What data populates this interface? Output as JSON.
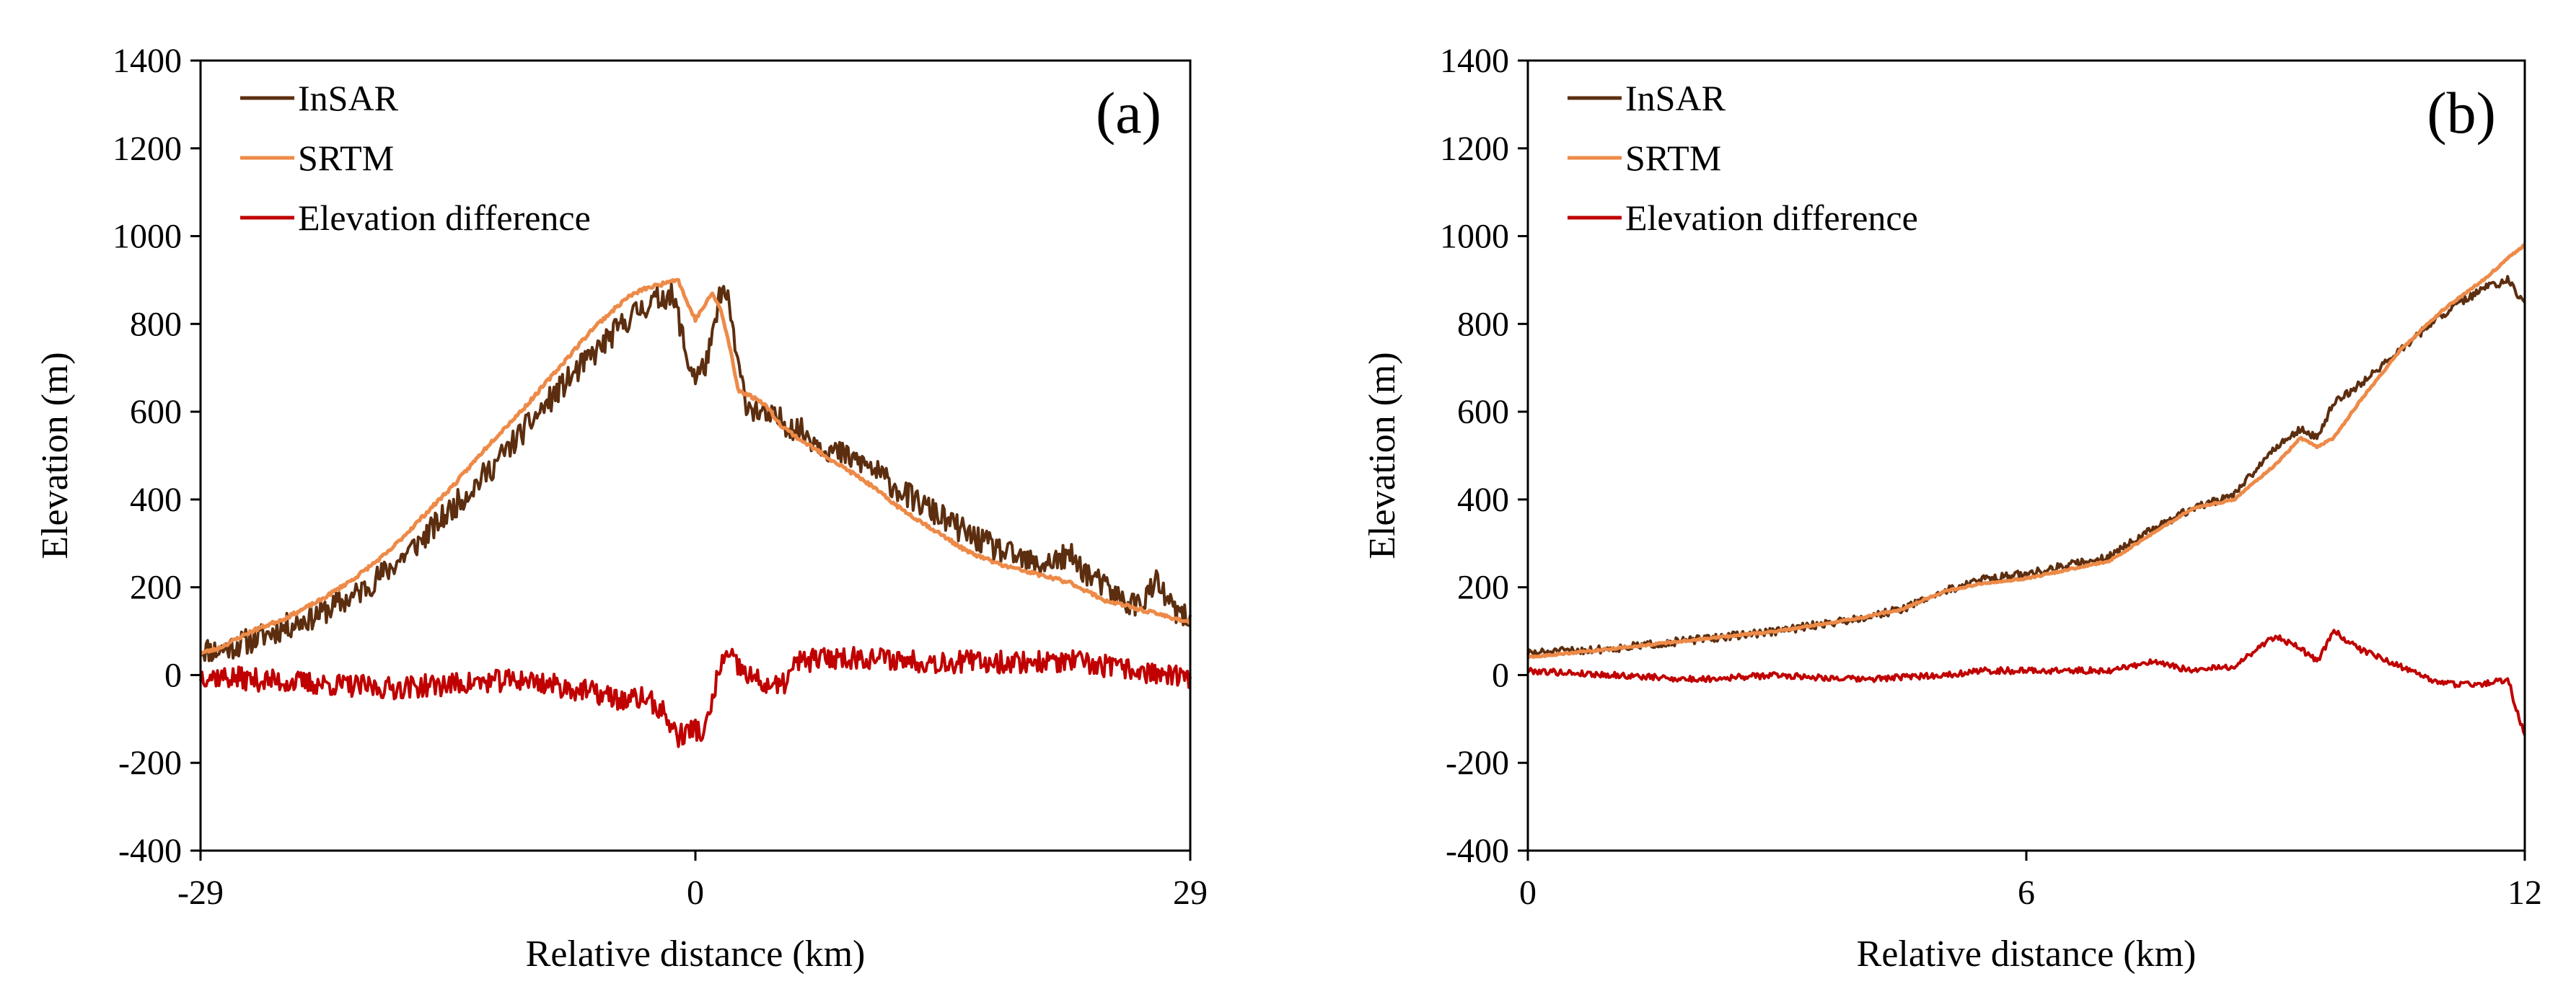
{
  "chart_data": [
    {
      "type": "line",
      "panel_label": "(a)",
      "xlabel": "Relative distance (km)",
      "ylabel": "Elevation (m)",
      "xlim": [
        -29,
        29
      ],
      "ylim": [
        -400,
        1400
      ],
      "xticks": [
        -29,
        0,
        29
      ],
      "xtick_labels": [
        "-29",
        "0",
        "29"
      ],
      "yticks": [
        1400,
        1200,
        1000,
        800,
        600,
        400,
        200,
        0,
        -200,
        -400
      ],
      "ytick_labels": [
        "1400",
        "1200",
        "1000",
        "800",
        "600",
        "400",
        "200",
        "0",
        "-200",
        "-400"
      ],
      "legend": [
        "InSAR",
        "SRTM",
        "Elevation difference"
      ],
      "series": [
        {
          "name": "InSAR",
          "color": "#5c2e0f",
          "noise": 30,
          "seed": 11,
          "x": [
            -29,
            -28,
            -26,
            -24,
            -22,
            -20,
            -18,
            -16,
            -14,
            -12,
            -10,
            -8,
            -6,
            -4,
            -3,
            -2,
            -1.5,
            -1,
            -0.5,
            0,
            0.5,
            1,
            1.5,
            2,
            2.5,
            3,
            4,
            5,
            6,
            8,
            10,
            12,
            14,
            16,
            18,
            20,
            21,
            22,
            23,
            24,
            25,
            26,
            27,
            28,
            29
          ],
          "y": [
            60,
            55,
            80,
            110,
            140,
            180,
            240,
            310,
            390,
            470,
            560,
            650,
            730,
            810,
            840,
            860,
            870,
            820,
            720,
            680,
            700,
            760,
            880,
            840,
            700,
            620,
            590,
            580,
            560,
            510,
            480,
            420,
            370,
            320,
            280,
            250,
            260,
            270,
            230,
            200,
            170,
            160,
            210,
            150,
            120
          ]
        },
        {
          "name": "SRTM",
          "color": "#ed8a48",
          "noise": 4,
          "seed": 23,
          "x": [
            -29,
            -28,
            -26,
            -24,
            -22,
            -20,
            -18,
            -16,
            -14,
            -12,
            -10,
            -8,
            -6,
            -4,
            -3,
            -2,
            -1.5,
            -1,
            -0.5,
            0,
            0.5,
            1,
            1.5,
            2,
            2.5,
            3,
            4,
            5,
            6,
            8,
            10,
            12,
            14,
            16,
            18,
            20,
            21,
            22,
            23,
            24,
            25,
            26,
            27,
            28,
            29
          ],
          "y": [
            50,
            60,
            100,
            130,
            170,
            220,
            280,
            360,
            440,
            530,
            610,
            700,
            790,
            860,
            880,
            890,
            900,
            900,
            850,
            810,
            840,
            870,
            830,
            750,
            650,
            640,
            620,
            570,
            540,
            490,
            440,
            380,
            330,
            280,
            250,
            230,
            220,
            210,
            190,
            170,
            160,
            150,
            140,
            130,
            120
          ]
        },
        {
          "name": "Elevation difference",
          "color": "#c00000",
          "noise": 26,
          "seed": 37,
          "x": [
            -29,
            -26,
            -22,
            -18,
            -14,
            -10,
            -6,
            -4,
            -3,
            -2,
            -1,
            -0.5,
            0,
            0.5,
            1,
            1.5,
            2,
            3,
            4,
            5,
            6,
            8,
            10,
            14,
            18,
            22,
            26,
            29
          ],
          "y": [
            0,
            -10,
            -20,
            -30,
            -20,
            -10,
            -40,
            -60,
            -50,
            -80,
            -140,
            -130,
            -120,
            -140,
            -60,
            30,
            40,
            0,
            -20,
            -30,
            30,
            40,
            40,
            30,
            30,
            30,
            10,
            -10
          ]
        }
      ]
    },
    {
      "type": "line",
      "panel_label": "(b)",
      "xlabel": "Relative distance (km)",
      "ylabel": "Elevation (m)",
      "xlim": [
        0,
        12
      ],
      "ylim": [
        -400,
        1400
      ],
      "xticks": [
        0,
        6,
        12
      ],
      "xtick_labels": [
        "0",
        "6",
        "12"
      ],
      "yticks": [
        1400,
        1200,
        1000,
        800,
        600,
        400,
        200,
        0,
        -200,
        -400
      ],
      "ytick_labels": [
        "1400",
        "1200",
        "1000",
        "800",
        "600",
        "400",
        "200",
        "0",
        "-200",
        "-400"
      ],
      "legend": [
        "InSAR",
        "SRTM",
        "Elevation difference"
      ],
      "series": [
        {
          "name": "InSAR",
          "color": "#5c2e0f",
          "noise": 9,
          "seed": 51,
          "x": [
            0,
            1,
            2,
            3,
            4,
            4.5,
            5,
            5.5,
            6,
            6.5,
            7,
            7.5,
            8,
            8.5,
            9,
            9.3,
            9.5,
            9.7,
            10,
            10.5,
            11,
            11.5,
            11.8,
            12
          ],
          "y": [
            50,
            60,
            80,
            100,
            130,
            150,
            190,
            220,
            230,
            250,
            270,
            330,
            380,
            410,
            520,
            560,
            540,
            620,
            660,
            740,
            820,
            880,
            900,
            840
          ]
        },
        {
          "name": "SRTM",
          "color": "#ed8a48",
          "noise": 2,
          "seed": 63,
          "x": [
            0,
            1,
            2,
            3,
            4,
            4.5,
            5,
            5.5,
            6,
            6.5,
            7,
            7.5,
            8,
            8.5,
            9,
            9.3,
            9.5,
            9.7,
            10,
            10.5,
            11,
            11.5,
            11.8,
            12
          ],
          "y": [
            40,
            60,
            80,
            100,
            130,
            150,
            190,
            210,
            220,
            240,
            260,
            320,
            380,
            400,
            480,
            540,
            520,
            540,
            620,
            740,
            830,
            900,
            950,
            980
          ]
        },
        {
          "name": "Elevation difference",
          "color": "#c00000",
          "noise": 7,
          "seed": 79,
          "x": [
            0,
            1,
            2,
            3,
            4,
            5,
            5.5,
            6,
            7,
            7.5,
            8,
            8.5,
            9,
            9.3,
            9.5,
            9.7,
            10,
            10.5,
            11,
            11.5,
            11.8,
            11.9,
            12
          ],
          "y": [
            10,
            0,
            -10,
            0,
            -10,
            0,
            10,
            10,
            10,
            30,
            10,
            20,
            90,
            60,
            30,
            100,
            60,
            20,
            -20,
            -20,
            -10,
            -80,
            -140
          ]
        }
      ]
    }
  ]
}
